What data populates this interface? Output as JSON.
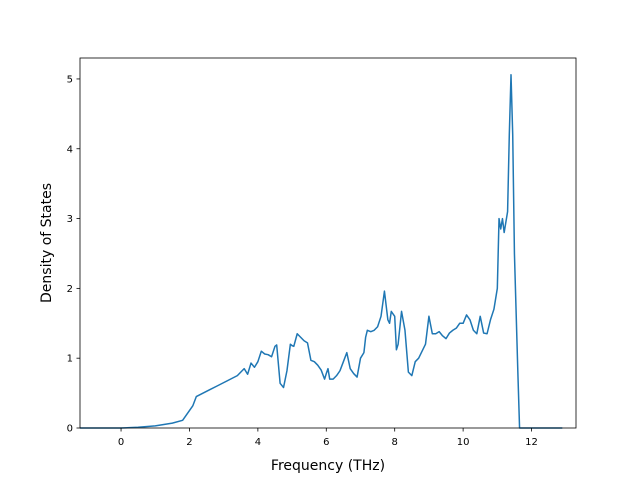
{
  "chart_data": {
    "type": "line",
    "title": "",
    "xlabel": "Frequency (THz)",
    "ylabel": "Density of States",
    "xlim": [
      -1.2,
      13.3
    ],
    "ylim": [
      0,
      5.3
    ],
    "xticks": [
      0,
      2,
      4,
      6,
      8,
      10,
      12
    ],
    "yticks": [
      0,
      1,
      2,
      3,
      4,
      5
    ],
    "grid": false,
    "legend": "none",
    "series_color": "#1f77b4",
    "x": [
      -1.2,
      0.0,
      0.5,
      1.0,
      1.5,
      1.8,
      2.0,
      2.1,
      2.2,
      2.4,
      2.6,
      2.8,
      3.0,
      3.2,
      3.4,
      3.5,
      3.6,
      3.7,
      3.8,
      3.9,
      4.0,
      4.1,
      4.2,
      4.3,
      4.4,
      4.5,
      4.55,
      4.65,
      4.75,
      4.85,
      4.95,
      5.0,
      5.05,
      5.15,
      5.25,
      5.35,
      5.45,
      5.55,
      5.65,
      5.75,
      5.85,
      5.95,
      6.0,
      6.05,
      6.1,
      6.2,
      6.3,
      6.4,
      6.5,
      6.6,
      6.7,
      6.8,
      6.9,
      7.0,
      7.1,
      7.15,
      7.2,
      7.3,
      7.4,
      7.5,
      7.6,
      7.7,
      7.8,
      7.85,
      7.9,
      8.0,
      8.05,
      8.1,
      8.2,
      8.3,
      8.4,
      8.5,
      8.6,
      8.7,
      8.8,
      8.9,
      9.0,
      9.1,
      9.2,
      9.3,
      9.4,
      9.5,
      9.6,
      9.7,
      9.8,
      9.9,
      10.0,
      10.1,
      10.2,
      10.3,
      10.4,
      10.5,
      10.6,
      10.7,
      10.8,
      10.9,
      11.0,
      11.05,
      11.1,
      11.15,
      11.2,
      11.3,
      11.35,
      11.4,
      11.45,
      11.5,
      11.6,
      11.65,
      11.7,
      11.8,
      12.0,
      12.9
    ],
    "y": [
      0.0,
      0.0,
      0.01,
      0.03,
      0.07,
      0.11,
      0.25,
      0.32,
      0.45,
      0.5,
      0.55,
      0.6,
      0.65,
      0.7,
      0.75,
      0.8,
      0.85,
      0.77,
      0.93,
      0.87,
      0.95,
      1.1,
      1.06,
      1.05,
      1.02,
      1.17,
      1.19,
      0.64,
      0.58,
      0.82,
      1.2,
      1.18,
      1.17,
      1.35,
      1.3,
      1.25,
      1.22,
      0.97,
      0.95,
      0.9,
      0.83,
      0.7,
      0.78,
      0.85,
      0.7,
      0.7,
      0.75,
      0.82,
      0.95,
      1.08,
      0.85,
      0.78,
      0.73,
      1.0,
      1.08,
      1.3,
      1.4,
      1.38,
      1.4,
      1.45,
      1.6,
      1.96,
      1.55,
      1.5,
      1.67,
      1.6,
      1.12,
      1.2,
      1.67,
      1.4,
      0.8,
      0.75,
      0.95,
      1.0,
      1.1,
      1.2,
      1.6,
      1.35,
      1.35,
      1.38,
      1.32,
      1.28,
      1.36,
      1.4,
      1.43,
      1.5,
      1.5,
      1.62,
      1.55,
      1.4,
      1.35,
      1.6,
      1.36,
      1.35,
      1.55,
      1.7,
      2.0,
      3.0,
      2.85,
      3.0,
      2.8,
      3.1,
      4.2,
      5.06,
      4.2,
      2.5,
      0.8,
      0.0,
      0.0,
      0.0,
      0.0,
      0.0
    ]
  }
}
